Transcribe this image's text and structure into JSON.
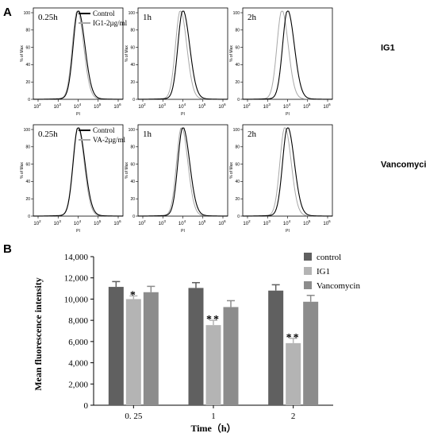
{
  "panel_a_label": "A",
  "panel_b_label": "B",
  "histograms": {
    "y_axis_label": "% of Max",
    "x_axis_label": "PI",
    "y_ticks": [
      "0",
      "20",
      "40",
      "60",
      "80",
      "100"
    ],
    "x_tick_base": "10",
    "x_tick_exponents": [
      "2",
      "3",
      "4",
      "5",
      "6"
    ],
    "rows": [
      {
        "label": "IG1",
        "legend": [
          "Control",
          "IG1-2µg/ml"
        ],
        "times": [
          "0.25h",
          "1h",
          "2h"
        ],
        "shift": [
          0.06,
          0.18,
          0.42
        ]
      },
      {
        "label": "Vancomycin",
        "legend": [
          "Control",
          "VA-2µg/ml"
        ],
        "times": [
          "0.25h",
          "1h",
          "2h"
        ],
        "shift": [
          0.02,
          0.1,
          0.2
        ]
      }
    ]
  },
  "chart_data": {
    "type": "bar",
    "ylabel": "Mean fluorescence intensity",
    "xlabel": "Time（h）",
    "ylim": [
      0,
      14000
    ],
    "y_ticks": [
      "0",
      "2,000",
      "4,000",
      "6,000",
      "8,000",
      "10,000",
      "12,000",
      "14,000"
    ],
    "y_tick_values": [
      0,
      2000,
      4000,
      6000,
      8000,
      10000,
      12000,
      14000
    ],
    "categories": [
      "0. 25",
      "1",
      "2"
    ],
    "series": [
      {
        "name": "control",
        "values": [
          11150,
          11050,
          10800
        ],
        "errors": [
          500,
          500,
          550
        ],
        "color": "#606060"
      },
      {
        "name": "IG1",
        "values": [
          10000,
          7550,
          5850
        ],
        "errors": [
          300,
          450,
          450
        ],
        "color": "#b4b4b4"
      },
      {
        "name": "Vancomycin",
        "values": [
          10650,
          9250,
          9750
        ],
        "errors": [
          550,
          600,
          600
        ],
        "color": "#8c8c8c"
      }
    ],
    "annotations": [
      {
        "category": 0,
        "series": 1,
        "text": "*"
      },
      {
        "category": 1,
        "series": 1,
        "text": "**"
      },
      {
        "category": 2,
        "series": 1,
        "text": "**"
      }
    ],
    "legend_position": "top-right",
    "grid": false
  }
}
